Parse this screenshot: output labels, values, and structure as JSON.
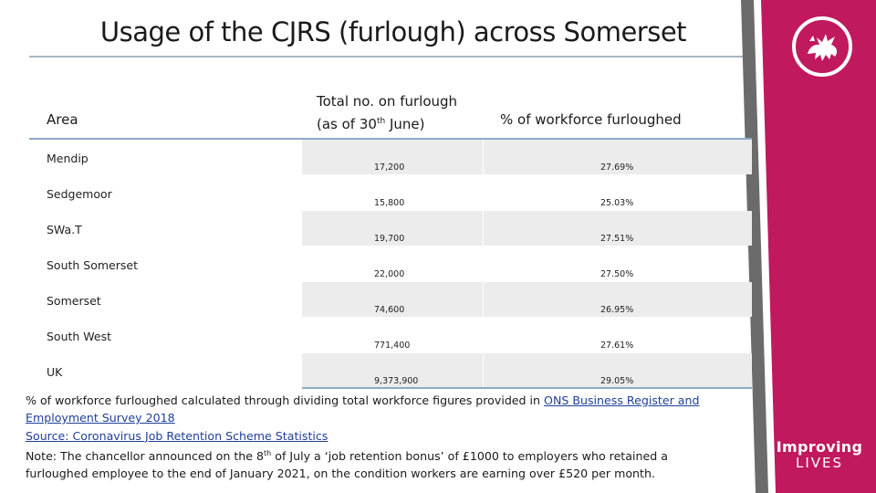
{
  "title": "Usage of the CJRS (furlough) across Somerset",
  "table": {
    "headers": {
      "area": "Area",
      "total_line1": "Total no. on furlough",
      "total_line2_pre": "(as of 30",
      "total_line2_sup": "th",
      "total_line2_post": " June)",
      "pct": "% of workforce furloughed"
    },
    "rows": [
      {
        "area": "Mendip",
        "total": "17,200",
        "pct": "27.69%"
      },
      {
        "area": "Sedgemoor",
        "total": "15,800",
        "pct": "25.03%"
      },
      {
        "area": "SWa.T",
        "total": "19,700",
        "pct": "27.51%"
      },
      {
        "area": "South Somerset",
        "total": "22,000",
        "pct": "27.50%"
      },
      {
        "area": "Somerset",
        "total": "74,600",
        "pct": "26.95%"
      },
      {
        "area": "South West",
        "total": "771,400",
        "pct": "27.61%"
      },
      {
        "area": "UK",
        "total": "9,373,900",
        "pct": "29.05%"
      }
    ]
  },
  "notes": {
    "line1_pre": "% of workforce furloughed calculated through dividing total workforce figures provided in ",
    "link1": "ONS Business Register and Employment Survey 2018",
    "link2": "Source: Coronavirus Job Retention Scheme Statistics",
    "note_pre": "Note: The chancellor announced on the 8",
    "note_sup": "th",
    "note_post": " of July a ‘job retention bonus’ of £1000  to employers who retained a furloughed employee to the end of January 2021, on the condition workers are earning over £520 per month."
  },
  "brand": {
    "line1": "Improving",
    "line2": "LIVES",
    "emblem": "dragon-emblem-icon",
    "color": "#c0195e"
  }
}
